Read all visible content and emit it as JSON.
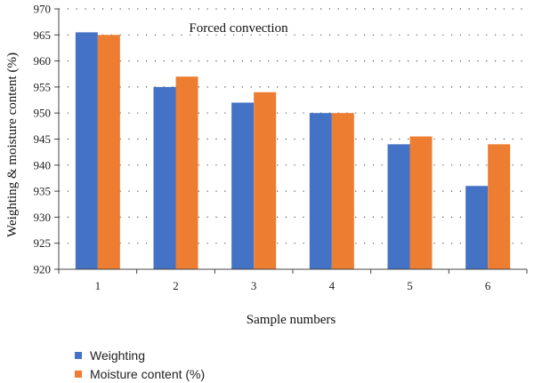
{
  "chart_data": {
    "type": "bar",
    "annotation": "Forced convection",
    "xlabel": "Sample numbers",
    "ylabel": "Weighting & moisture content (%)",
    "categories": [
      "1",
      "2",
      "3",
      "4",
      "5",
      "6"
    ],
    "ylim": [
      920,
      970
    ],
    "yticks": [
      920,
      925,
      930,
      935,
      940,
      945,
      950,
      955,
      960,
      965,
      970
    ],
    "grid": "dotted-horizontal",
    "legend_position": "bottom-left",
    "series": [
      {
        "name": "Weighting",
        "color": "#4472c4",
        "values": [
          965.5,
          955,
          952,
          950,
          944,
          936
        ]
      },
      {
        "name": "Moisture content (%)",
        "color": "#ed7d31",
        "values": [
          965,
          957,
          954,
          950,
          945.5,
          944
        ]
      }
    ]
  }
}
